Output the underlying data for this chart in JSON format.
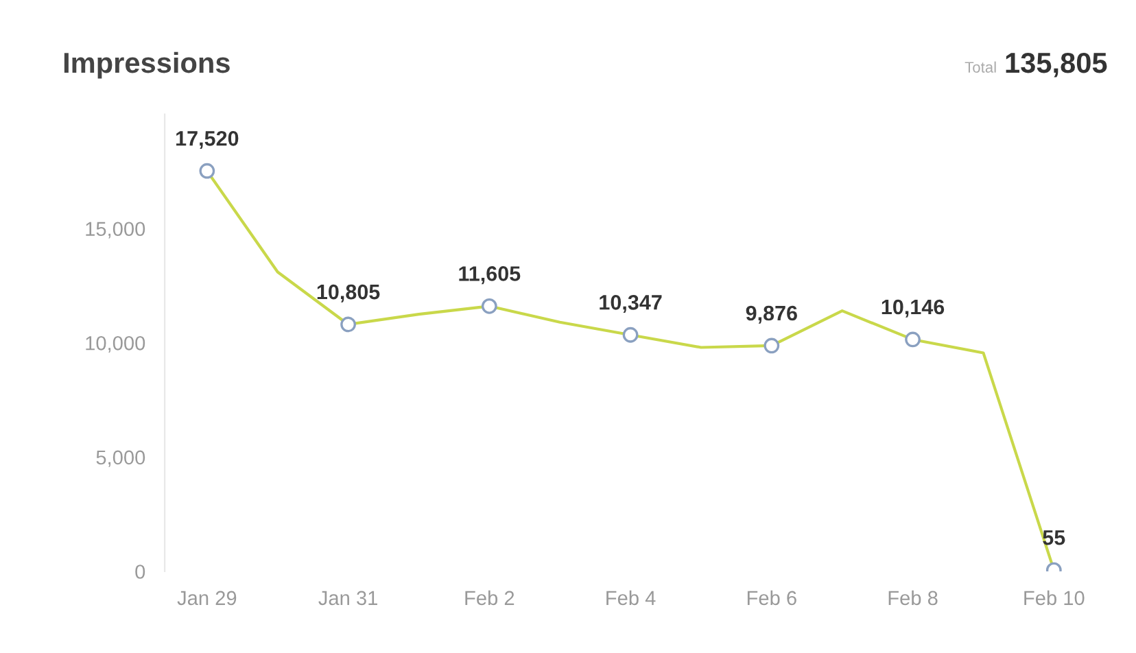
{
  "chart_data": {
    "type": "line",
    "title": "Impressions",
    "annotations": [
      "Total",
      "135,805"
    ],
    "categories": [
      "Jan 29",
      null,
      "Jan 31",
      null,
      "Feb 2",
      null,
      "Feb 4",
      null,
      "Feb 6",
      null,
      "Feb 8",
      null,
      "Feb 10"
    ],
    "series": [
      {
        "color": "#c9d84a",
        "values": [
          17520,
          13100,
          10805,
          11250,
          11605,
          10900,
          10347,
          9800,
          9876,
          11400,
          10146,
          9560,
          55
        ],
        "value_labels": [
          "17,520",
          null,
          "10,805",
          null,
          "11,605",
          null,
          "10,347",
          null,
          "9,876",
          null,
          "10,146",
          null,
          "55"
        ]
      }
    ],
    "ylim": [
      0,
      20000
    ],
    "yticks": [
      {
        "value": 0,
        "label": "0"
      },
      {
        "value": 5000,
        "label": "5,000"
      },
      {
        "value": 10000,
        "label": "10,000"
      },
      {
        "value": 15000,
        "label": "15,000"
      }
    ],
    "grid": false,
    "marker": "circle",
    "line_style": "solid"
  }
}
